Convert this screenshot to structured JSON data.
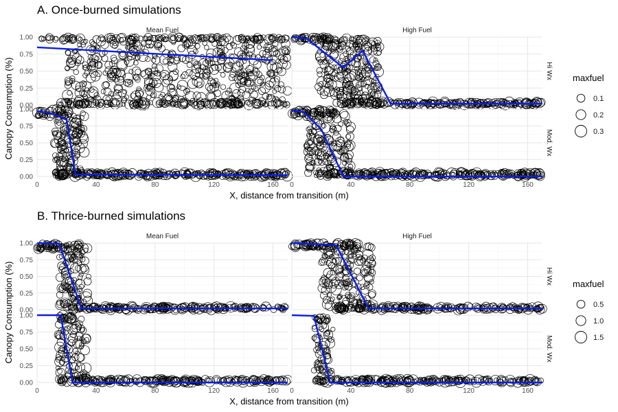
{
  "chart_data": [
    {
      "type": "scatter",
      "title": "A. Once-burned simulations",
      "xlabel": "X, distance from transition (m)",
      "ylabel": "Canopy Consumption (%)",
      "xlim": [
        0,
        170
      ],
      "ylim": [
        0,
        1
      ],
      "x_ticks": [
        "0",
        "40",
        "80",
        "120",
        "160"
      ],
      "y_ticks": [
        "0.00",
        "0.25",
        "0.50",
        "0.75",
        "1.00"
      ],
      "columns": [
        "Mean Fuel",
        "High Fuel"
      ],
      "rows": [
        "Hi Wx",
        "Mod. Wx"
      ],
      "grid": true,
      "legend": {
        "title": "maxfuel",
        "position": "right",
        "sizes": [
          0.1,
          0.2,
          0.3
        ],
        "labels": [
          "0.1",
          "0.2",
          "0.3"
        ]
      },
      "panels": [
        {
          "column": "Mean Fuel",
          "row": "Hi Wx",
          "fit_line": {
            "x": [
              0,
              160
            ],
            "y": [
              0.85,
              0.66
            ]
          },
          "point_clouds": [
            {
              "x": [
                20,
                170
              ],
              "y": [
                0.05,
                1.0
              ],
              "count": 520,
              "size": [
                0.05,
                0.3
              ]
            },
            {
              "x": [
                0,
                170
              ],
              "y": [
                0.96,
                1.0
              ],
              "count": 120,
              "size": [
                0.05,
                0.25
              ]
            },
            {
              "x": [
                15,
                170
              ],
              "y": [
                0.0,
                0.04
              ],
              "count": 160,
              "size": [
                0.05,
                0.3
              ]
            }
          ]
        },
        {
          "column": "High Fuel",
          "row": "Hi Wx",
          "fit_line": {
            "x": [
              0,
              10,
              35,
              48,
              67,
              170
            ],
            "y": [
              1.0,
              0.98,
              0.55,
              0.8,
              0.02,
              0.02
            ]
          },
          "point_clouds": [
            {
              "x": [
                0,
                25
              ],
              "y": [
                0.95,
                1.0
              ],
              "count": 40,
              "size": [
                0.05,
                0.3
              ]
            },
            {
              "x": [
                18,
                60
              ],
              "y": [
                0.05,
                1.0
              ],
              "count": 240,
              "size": [
                0.05,
                0.3
              ]
            },
            {
              "x": [
                30,
                170
              ],
              "y": [
                0.0,
                0.05
              ],
              "count": 200,
              "size": [
                0.05,
                0.3
              ]
            }
          ]
        },
        {
          "column": "Mean Fuel",
          "row": "Mod. Wx",
          "fit_line": {
            "x": [
              0,
              8,
              20,
              26,
              170
            ],
            "y": [
              0.97,
              0.95,
              0.85,
              0.03,
              0.02
            ]
          },
          "point_clouds": [
            {
              "x": [
                0,
                22
              ],
              "y": [
                0.9,
                1.0
              ],
              "count": 40,
              "size": [
                0.05,
                0.3
              ]
            },
            {
              "x": [
                12,
                32
              ],
              "y": [
                0.05,
                0.95
              ],
              "count": 130,
              "size": [
                0.05,
                0.3
              ]
            },
            {
              "x": [
                12,
                170
              ],
              "y": [
                0.0,
                0.06
              ],
              "count": 260,
              "size": [
                0.05,
                0.3
              ]
            }
          ]
        },
        {
          "column": "High Fuel",
          "row": "Mod. Wx",
          "fit_line": {
            "x": [
              0,
              8,
              20,
              35,
              170
            ],
            "y": [
              0.98,
              0.96,
              0.7,
              0.0,
              0.0
            ]
          },
          "point_clouds": [
            {
              "x": [
                0,
                30
              ],
              "y": [
                0.9,
                1.0
              ],
              "count": 50,
              "size": [
                0.05,
                0.3
              ]
            },
            {
              "x": [
                10,
                40
              ],
              "y": [
                0.05,
                0.95
              ],
              "count": 150,
              "size": [
                0.05,
                0.3
              ]
            },
            {
              "x": [
                15,
                170
              ],
              "y": [
                0.0,
                0.06
              ],
              "count": 260,
              "size": [
                0.05,
                0.3
              ]
            }
          ]
        }
      ]
    },
    {
      "type": "scatter",
      "title": "B. Thrice-burned simulations",
      "xlabel": "X, distance from transition (m)",
      "ylabel": "Canopy Consumption (%)",
      "xlim": [
        0,
        170
      ],
      "ylim": [
        0,
        1
      ],
      "x_ticks": [
        "0",
        "40",
        "80",
        "120",
        "160"
      ],
      "y_ticks": [
        "0.00",
        "0.25",
        "0.50",
        "0.75",
        "1.00"
      ],
      "columns": [
        "Mean Fuel",
        "High Fuel"
      ],
      "rows": [
        "Hi Wx",
        "Mod. Wx"
      ],
      "grid": true,
      "legend": {
        "title": "maxfuel",
        "position": "right",
        "sizes": [
          0.5,
          1.0,
          1.5
        ],
        "labels": [
          "0.5",
          "1.0",
          "1.5"
        ]
      },
      "panels": [
        {
          "column": "Mean Fuel",
          "row": "Hi Wx",
          "fit_line": {
            "x": [
              0,
              15,
              30,
              170
            ],
            "y": [
              1.0,
              0.99,
              0.02,
              0.02
            ]
          },
          "point_clouds": [
            {
              "x": [
                0,
                30
              ],
              "y": [
                0.9,
                1.0
              ],
              "count": 60,
              "size": [
                0.05,
                0.3
              ]
            },
            {
              "x": [
                15,
                35
              ],
              "y": [
                0.05,
                0.95
              ],
              "count": 100,
              "size": [
                0.05,
                0.3
              ]
            },
            {
              "x": [
                20,
                170
              ],
              "y": [
                0.0,
                0.05
              ],
              "count": 200,
              "size": [
                0.05,
                0.3
              ]
            }
          ]
        },
        {
          "column": "High Fuel",
          "row": "Hi Wx",
          "fit_line": {
            "x": [
              0,
              30,
              52,
              170
            ],
            "y": [
              1.0,
              0.97,
              0.02,
              0.02
            ]
          },
          "point_clouds": [
            {
              "x": [
                0,
                45
              ],
              "y": [
                0.92,
                1.0
              ],
              "count": 70,
              "size": [
                0.05,
                0.3
              ]
            },
            {
              "x": [
                20,
                55
              ],
              "y": [
                0.05,
                0.95
              ],
              "count": 160,
              "size": [
                0.05,
                0.3
              ]
            },
            {
              "x": [
                30,
                170
              ],
              "y": [
                0.0,
                0.05
              ],
              "count": 200,
              "size": [
                0.05,
                0.3
              ]
            }
          ]
        },
        {
          "column": "Mean Fuel",
          "row": "Mod. Wx",
          "fit_line": {
            "x": [
              0,
              16,
              24,
              170
            ],
            "y": [
              1.0,
              1.0,
              0.0,
              0.0
            ]
          },
          "point_clouds": [
            {
              "x": [
                15,
                25
              ],
              "y": [
                0.9,
                1.0
              ],
              "count": 20,
              "size": [
                0.05,
                0.3
              ]
            },
            {
              "x": [
                14,
                34
              ],
              "y": [
                0.05,
                0.95
              ],
              "count": 90,
              "size": [
                0.05,
                0.3
              ]
            },
            {
              "x": [
                15,
                170
              ],
              "y": [
                0.0,
                0.05
              ],
              "count": 220,
              "size": [
                0.05,
                0.3
              ]
            }
          ]
        },
        {
          "column": "High Fuel",
          "row": "Mod. Wx",
          "fit_line": {
            "x": [
              0,
              15,
              26,
              170
            ],
            "y": [
              1.0,
              0.99,
              0.0,
              0.0
            ]
          },
          "point_clouds": [
            {
              "x": [
                15,
                25
              ],
              "y": [
                0.9,
                1.0
              ],
              "count": 15,
              "size": [
                0.05,
                0.3
              ]
            },
            {
              "x": [
                15,
                28
              ],
              "y": [
                0.05,
                0.95
              ],
              "count": 60,
              "size": [
                0.05,
                0.3
              ]
            },
            {
              "x": [
                15,
                170
              ],
              "y": [
                0.0,
                0.05
              ],
              "count": 220,
              "size": [
                0.05,
                0.3
              ]
            }
          ]
        }
      ]
    }
  ]
}
